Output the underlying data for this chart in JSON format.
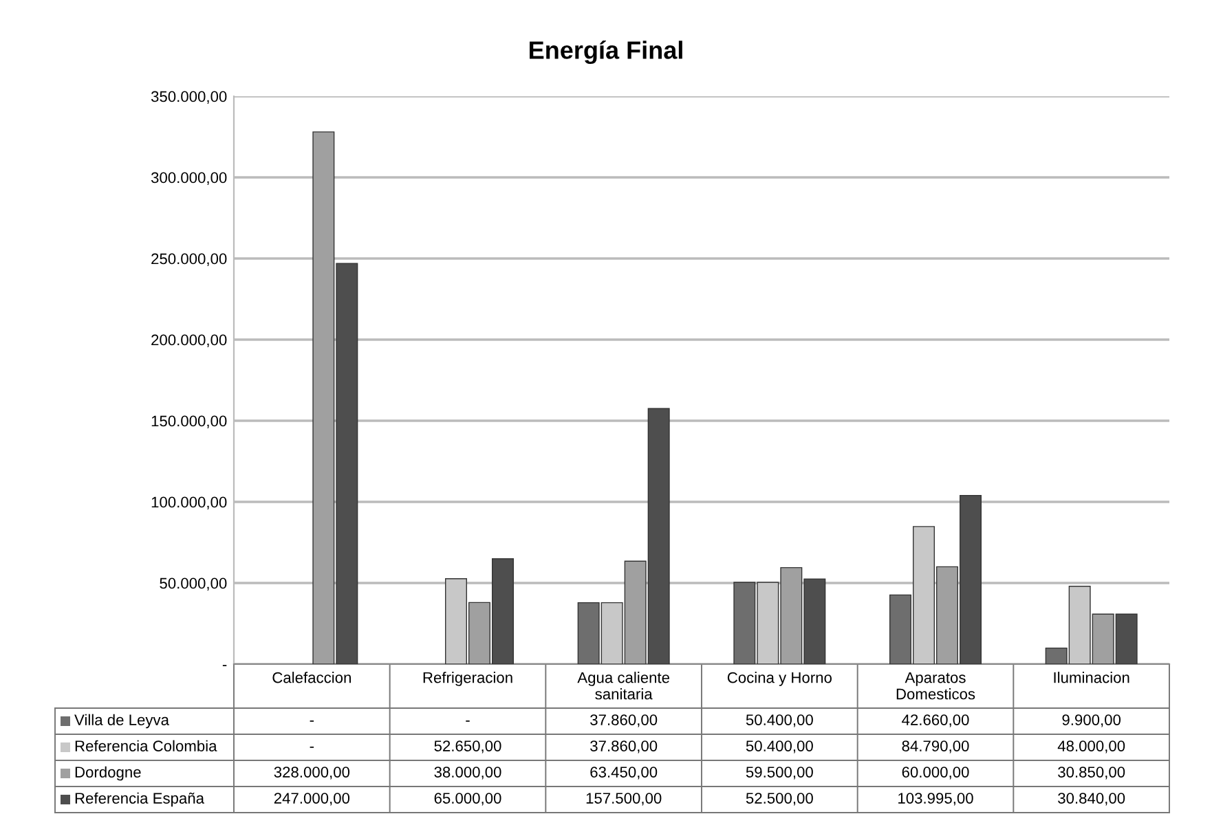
{
  "chart_data": {
    "type": "bar",
    "title": "Energía Final",
    "categories": [
      "Calefaccion",
      "Refrigeracion",
      "Agua caliente\nsanitaria",
      "Cocina y Horno",
      "Aparatos\nDomesticos",
      "Iluminacion"
    ],
    "series": [
      {
        "name": "Villa de Leyva",
        "color": "#6e6e6e",
        "values": [
          0,
          0,
          37860,
          50400,
          42660,
          9900
        ],
        "value_labels": [
          "-",
          "-",
          "37.860,00",
          "50.400,00",
          "42.660,00",
          "9.900,00"
        ]
      },
      {
        "name": "Referencia Colombia",
        "color": "#c8c8c8",
        "values": [
          0,
          52650,
          37860,
          50400,
          84790,
          48000
        ],
        "value_labels": [
          "-",
          "52.650,00",
          "37.860,00",
          "50.400,00",
          "84.790,00",
          "48.000,00"
        ]
      },
      {
        "name": "Dordogne",
        "color": "#a0a0a0",
        "values": [
          328000,
          38000,
          63450,
          59500,
          60000,
          30850
        ],
        "value_labels": [
          "328.000,00",
          "38.000,00",
          "63.450,00",
          "59.500,00",
          "60.000,00",
          "30.850,00"
        ]
      },
      {
        "name": "Referencia España",
        "color": "#4e4e4e",
        "values": [
          247000,
          65000,
          157500,
          52500,
          103995,
          30840
        ],
        "value_labels": [
          "247.000,00",
          "65.000,00",
          "157.500,00",
          "52.500,00",
          "103.995,00",
          "30.840,00"
        ]
      }
    ],
    "ylim": [
      0,
      350000
    ],
    "yticks": [
      {
        "value": 0,
        "label": "-"
      },
      {
        "value": 50000,
        "label": "50.000,00"
      },
      {
        "value": 100000,
        "label": "100.000,00"
      },
      {
        "value": 150000,
        "label": "150.000,00"
      },
      {
        "value": 200000,
        "label": "200.000,00"
      },
      {
        "value": 250000,
        "label": "250.000,00"
      },
      {
        "value": 300000,
        "label": "300.000,00"
      },
      {
        "value": 350000,
        "label": "350.000,00"
      }
    ],
    "grid": "y",
    "legend": "bottom"
  }
}
